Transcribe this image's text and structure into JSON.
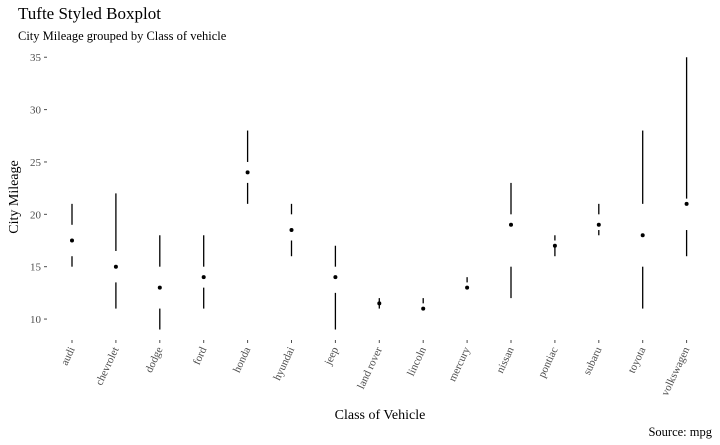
{
  "chart_data": {
    "type": "boxplot",
    "title": "Tufte Styled Boxplot",
    "subtitle": "City Mileage grouped by Class of vehicle",
    "xlabel": "Class of Vehicle",
    "ylabel": "City Mileage",
    "caption": "Source: mpg",
    "ylim": [
      8,
      35.5
    ],
    "yticks": [
      10,
      15,
      20,
      25,
      30,
      35
    ],
    "grid": false,
    "categories": [
      "audi",
      "chevrolet",
      "dodge",
      "ford",
      "honda",
      "hyundai",
      "jeep",
      "land rover",
      "lincoln",
      "mercury",
      "nissan",
      "pontiac",
      "subaru",
      "toyota",
      "volkswagen"
    ],
    "boxes": [
      {
        "min": 15,
        "q1": 16,
        "median": 17.5,
        "q3": 19,
        "max": 21
      },
      {
        "min": 11,
        "q1": 13.5,
        "median": 15,
        "q3": 16.5,
        "max": 22
      },
      {
        "min": 9,
        "q1": 11,
        "median": 13,
        "q3": 15,
        "max": 18
      },
      {
        "min": 11,
        "q1": 13,
        "median": 14,
        "q3": 15,
        "max": 18
      },
      {
        "min": 21,
        "q1": 23,
        "median": 24,
        "q3": 25,
        "max": 28
      },
      {
        "min": 16,
        "q1": 17.5,
        "median": 18.5,
        "q3": 20,
        "max": 21
      },
      {
        "min": 9,
        "q1": 12.5,
        "median": 14,
        "q3": 15,
        "max": 17
      },
      {
        "min": 11,
        "q1": 11.5,
        "median": 11.5,
        "q3": 11.5,
        "max": 12
      },
      {
        "min": 11,
        "q1": 11,
        "median": 11,
        "q3": 11.5,
        "max": 12
      },
      {
        "min": 13,
        "q1": 13,
        "median": 13,
        "q3": 13.5,
        "max": 14
      },
      {
        "min": 12,
        "q1": 15,
        "median": 19,
        "q3": 20,
        "max": 23
      },
      {
        "min": 16,
        "q1": 17,
        "median": 17,
        "q3": 17.5,
        "max": 18
      },
      {
        "min": 18,
        "q1": 18.5,
        "median": 19,
        "q3": 20,
        "max": 21
      },
      {
        "min": 11,
        "q1": 15,
        "median": 18,
        "q3": 21,
        "max": 28
      },
      {
        "min": 16,
        "q1": 18.5,
        "median": 21,
        "q3": 21.5,
        "max": 35
      }
    ]
  }
}
